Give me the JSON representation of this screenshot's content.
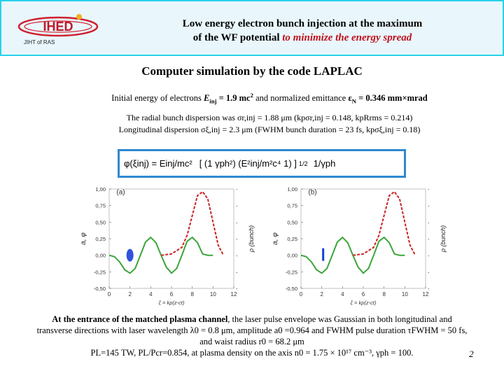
{
  "header": {
    "logo_text": "IHED",
    "institute_label": "JIHT of RAS",
    "title_line1": "Low energy electron bunch injection at the maximum",
    "title_line2_prefix": "of the WF potential ",
    "title_line2_highlight": "to minimize the energy spread"
  },
  "subtitle": "Computer simulation by the code LAPLAC",
  "initial": {
    "prefix": "Initial energy of electrons ",
    "E_sym": "E",
    "E_sub": "inj",
    "E_value": " = 1.9 mc",
    "E_sup": "2",
    "mid": " and normalized emittance ",
    "eps_sym": "ε",
    "eps_sub": "N",
    "eps_value": " = 0.346 mm×mrad"
  },
  "dispersion": {
    "line1": "The radial bunch dispersion was σr,inj = 1.88 μm (kpσr,inj = 0.148, kpRrms = 0.214)",
    "line2": "Longitudinal dispersion σξ,inj = 2.3 μm (FWHM bunch duration = 23 fs, kpσξ,inj = 0.18)"
  },
  "formula": {
    "lhs": "φ(ξinj) = Einj/mc²",
    "bracket": "[ (1  γph²) (E²inj/m²c⁴  1) ]",
    "exponent": "1/2",
    "tail": "1/γph"
  },
  "chart_data": [
    {
      "type": "line",
      "panel_label": "(a)",
      "xlabel": "ξ = kp(z-ct)",
      "ylabel": "a, φ",
      "y2label": "ρ (bunch)",
      "x_ticks": [
        "0",
        "2",
        "4",
        "6",
        "8",
        "10",
        "12"
      ],
      "y_ticks": [
        "-0,50",
        "-0,25",
        "0,00",
        "0,25",
        "0,50",
        "0,75",
        "1,00"
      ],
      "y2_ticks": [
        "-",
        "-",
        "-",
        "-",
        "-",
        "-",
        "-"
      ],
      "xlim": [
        0,
        12
      ],
      "ylim": [
        -0.5,
        1.0
      ],
      "series": [
        {
          "name": "φ (wake potential, green solid)",
          "color": "#3aa63a",
          "x": [
            0.0,
            0.5,
            1.0,
            1.5,
            2.0,
            2.5,
            3.0,
            3.5,
            4.0,
            4.5,
            5.0,
            5.5,
            6.0,
            6.5,
            7.0,
            7.5,
            8.0,
            8.5,
            9.0,
            9.5,
            10.0
          ],
          "y": [
            0.0,
            -0.02,
            -0.1,
            -0.22,
            -0.27,
            -0.2,
            0.0,
            0.2,
            0.27,
            0.19,
            0.0,
            -0.18,
            -0.27,
            -0.2,
            0.0,
            0.21,
            0.27,
            0.19,
            0.02,
            0.0,
            0.0
          ]
        },
        {
          "name": "a (laser envelope, red dashed)",
          "color": "#cc2222",
          "x": [
            5.0,
            6.0,
            7.0,
            7.5,
            8.0,
            8.5,
            9.0,
            9.5,
            10.0,
            10.5,
            11.0
          ],
          "y": [
            0.0,
            0.02,
            0.12,
            0.3,
            0.6,
            0.9,
            0.96,
            0.85,
            0.5,
            0.15,
            0.0
          ]
        }
      ],
      "bunch_position": 2.0
    },
    {
      "type": "line",
      "panel_label": "(b)",
      "xlabel": "ξ = kp(z-ct)",
      "ylabel": "a, φ",
      "y2label": "ρ (bunch)",
      "x_ticks": [
        "0",
        "2",
        "4",
        "6",
        "8",
        "10",
        "12"
      ],
      "y_ticks": [
        "-0,50",
        "-0,25",
        "0,00",
        "0,25",
        "0,50",
        "0,75",
        "1,00"
      ],
      "y2_ticks": [
        "-",
        "-",
        "-",
        "-",
        "-",
        "-",
        "-"
      ],
      "xlim": [
        0,
        12
      ],
      "ylim": [
        -0.5,
        1.0
      ],
      "series": [
        {
          "name": "φ (wake potential, green solid)",
          "color": "#3aa63a",
          "x": [
            0.0,
            0.5,
            1.0,
            1.5,
            2.0,
            2.5,
            3.0,
            3.5,
            4.0,
            4.5,
            5.0,
            5.5,
            6.0,
            6.5,
            7.0,
            7.5,
            8.0,
            8.5,
            9.0,
            9.5,
            10.0
          ],
          "y": [
            0.0,
            -0.02,
            -0.1,
            -0.22,
            -0.27,
            -0.2,
            0.0,
            0.2,
            0.27,
            0.19,
            0.0,
            -0.18,
            -0.27,
            -0.2,
            0.0,
            0.21,
            0.27,
            0.19,
            0.02,
            0.0,
            0.0
          ]
        },
        {
          "name": "a (laser envelope, red dashed)",
          "color": "#cc2222",
          "x": [
            5.0,
            6.0,
            7.0,
            7.5,
            8.0,
            8.5,
            9.0,
            9.5,
            10.0,
            10.5,
            11.0
          ],
          "y": [
            0.0,
            0.02,
            0.12,
            0.3,
            0.6,
            0.9,
            0.96,
            0.85,
            0.5,
            0.15,
            0.0
          ]
        }
      ],
      "bunch_position": 2.0
    }
  ],
  "bottom": {
    "bold_lead": "At the entrance of the matched plasma channel",
    "line1_rest": ", the laser pulse envelope was Gaussian in both longitudinal and",
    "line2": "transverse directions with laser wavelength λ0 = 0.8 μm, amplitude a0 =0.964 and FWHM pulse duration τFWHM = 50 fs,",
    "line3": "and waist radius r0 = 68.2 μm",
    "line4": "PL=145 TW, PL/Pcr=0.854, at plasma density on the axis n0 = 1.75 × 10¹⁷ cm⁻³, γph = 100."
  },
  "page_number": "2"
}
